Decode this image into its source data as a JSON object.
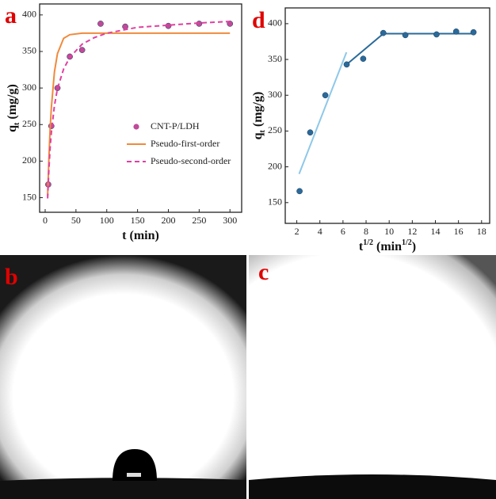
{
  "chart_data": [
    {
      "type": "line",
      "panel_label": "a",
      "x_label": [
        "t (min)"
      ],
      "x_label_script": "super",
      "y_label": [
        "q",
        "t",
        " (mg/g)"
      ],
      "y_label_script": "sub",
      "xlim": [
        -9,
        319
      ],
      "ylim": [
        130,
        415
      ],
      "xticks": [
        0,
        50,
        100,
        150,
        200,
        250,
        300
      ],
      "yticks": [
        150,
        200,
        250,
        300,
        350,
        400
      ],
      "legend": "right",
      "series": [
        {
          "name": "CNT-P/LDH",
          "color": "#c04a9a",
          "style": "markers",
          "x": [
            5,
            10,
            20,
            40,
            60,
            90,
            130,
            200,
            250,
            300
          ],
          "values": [
            168,
            248,
            300,
            343,
            352,
            388,
            384,
            385,
            388,
            388
          ]
        },
        {
          "name": "Pseudo-first-order",
          "color": "#f08a3c",
          "style": "solid",
          "x": [
            4,
            6,
            8,
            10,
            15,
            20,
            30,
            40,
            60,
            100,
            200,
            300
          ],
          "values": [
            152,
            203,
            243,
            273,
            322,
            347,
            368,
            373,
            375,
            375,
            375,
            375
          ]
        },
        {
          "name": "Pseudo-second-order",
          "color": "#e040a0",
          "style": "dashed",
          "x": [
            4,
            6,
            8,
            10,
            15,
            20,
            30,
            40,
            60,
            80,
            100,
            150,
            200,
            250,
            300
          ],
          "values": [
            149,
            188,
            217,
            239,
            276,
            299,
            326,
            342,
            360,
            369,
            375,
            383,
            386,
            389,
            391
          ]
        }
      ]
    },
    {
      "type": "line",
      "panel_label": "d",
      "x_label": [
        "t",
        "1/2",
        " (min",
        "1/2",
        ")"
      ],
      "x_label_script": "super",
      "y_label": [
        "q",
        "t",
        " (mg/g)"
      ],
      "y_label_script": "sub",
      "xlim": [
        1,
        18.7
      ],
      "ylim": [
        121,
        422
      ],
      "xticks": [
        2,
        4,
        6,
        8,
        10,
        12,
        14,
        16,
        18
      ],
      "yticks": [
        150,
        200,
        250,
        300,
        350,
        400
      ],
      "series": [
        {
          "color": "#8ec8e8",
          "style": "solid",
          "x": [
            2.2,
            6.3
          ],
          "values": [
            190,
            360
          ]
        },
        {
          "color": "#2a6a9a",
          "style": "solid",
          "x": [
            6.32,
            9.49,
            17.3
          ],
          "values": [
            343,
            386,
            386
          ]
        },
        {
          "color": "#2a6a9a",
          "style": "markers",
          "x": [
            2.24,
            3.16,
            4.47,
            6.32,
            7.75,
            9.49,
            11.4,
            14.1,
            15.8,
            17.3
          ],
          "values": [
            166,
            248,
            300,
            343,
            351,
            387,
            384,
            385,
            389,
            388
          ]
        }
      ]
    }
  ],
  "photos": [
    {
      "label": "b"
    },
    {
      "label": "c"
    }
  ]
}
